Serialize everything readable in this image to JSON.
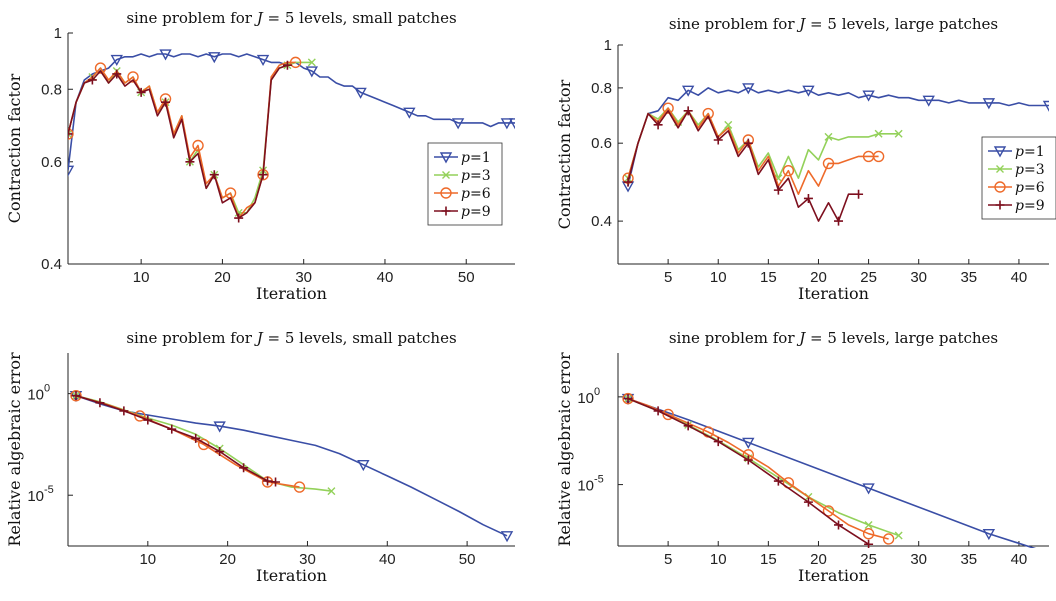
{
  "figure": {
    "colors": {
      "p1": "#3a4ea6",
      "p3": "#93d15a",
      "p6": "#ee6a2a",
      "p9": "#7d0f1e",
      "axis": "#222222"
    }
  },
  "chart_data": [
    {
      "type": "line",
      "title_prefix": "sine problem for ",
      "title_var": "J",
      "title_suffix": " = 5 levels, small patches",
      "xlabel": "Iteration",
      "ylabel": "Contraction factor",
      "xlim": [
        1,
        56
      ],
      "ylim": [
        0.4,
        1.0
      ],
      "yscale": "log",
      "xticks": [
        10,
        20,
        30,
        40,
        50
      ],
      "yticks": [
        {
          "v": 0.4,
          "label": "0.4"
        },
        {
          "v": 0.6,
          "label": "0.6"
        },
        {
          "v": 0.8,
          "label": "0.8"
        },
        {
          "v": 1.0,
          "label": "1"
        }
      ],
      "legend": "right",
      "series": [
        {
          "name": "p=1",
          "var": "p",
          "eq": "=1",
          "color": "#3a4ea6",
          "marker": "triangle-down",
          "every": 6,
          "x": [
            1,
            2,
            3,
            4,
            5,
            6,
            7,
            8,
            9,
            10,
            11,
            12,
            13,
            14,
            15,
            16,
            17,
            18,
            19,
            20,
            21,
            22,
            23,
            24,
            25,
            26,
            27,
            28,
            29,
            30,
            31,
            32,
            33,
            34,
            35,
            36,
            37,
            38,
            39,
            40,
            41,
            42,
            43,
            44,
            45,
            46,
            47,
            48,
            49,
            50,
            51,
            52,
            53,
            54,
            55,
            56
          ],
          "y": [
            0.58,
            0.76,
            0.83,
            0.85,
            0.86,
            0.87,
            0.9,
            0.91,
            0.91,
            0.92,
            0.91,
            0.92,
            0.92,
            0.91,
            0.92,
            0.92,
            0.91,
            0.92,
            0.91,
            0.92,
            0.92,
            0.91,
            0.92,
            0.91,
            0.9,
            0.89,
            0.89,
            0.88,
            0.89,
            0.87,
            0.86,
            0.84,
            0.84,
            0.82,
            0.81,
            0.81,
            0.79,
            0.78,
            0.77,
            0.76,
            0.75,
            0.74,
            0.73,
            0.72,
            0.72,
            0.71,
            0.71,
            0.71,
            0.7,
            0.7,
            0.7,
            0.7,
            0.69,
            0.7,
            0.7,
            0.7
          ]
        },
        {
          "name": "p=3",
          "var": "p",
          "eq": "=3",
          "color": "#93d15a",
          "marker": "x",
          "every": 3,
          "x": [
            1,
            2,
            3,
            4,
            5,
            6,
            7,
            8,
            9,
            10,
            11,
            12,
            13,
            14,
            15,
            16,
            17,
            18,
            19,
            20,
            21,
            22,
            23,
            24,
            25,
            26,
            27,
            28,
            29,
            30,
            31
          ],
          "y": [
            0.67,
            0.76,
            0.82,
            0.84,
            0.87,
            0.82,
            0.86,
            0.82,
            0.84,
            0.79,
            0.81,
            0.73,
            0.76,
            0.67,
            0.72,
            0.6,
            0.63,
            0.54,
            0.57,
            0.52,
            0.53,
            0.49,
            0.49,
            0.52,
            0.58,
            0.83,
            0.87,
            0.88,
            0.89,
            0.89,
            0.89
          ]
        },
        {
          "name": "p=6",
          "var": "p",
          "eq": "=6",
          "color": "#ee6a2a",
          "marker": "circle",
          "every": 4,
          "x": [
            1,
            2,
            3,
            4,
            5,
            6,
            7,
            8,
            9,
            10,
            11,
            12,
            13,
            14,
            15,
            16,
            17,
            18,
            19,
            20,
            21,
            22,
            23,
            24,
            25,
            26,
            27,
            28,
            29
          ],
          "y": [
            0.67,
            0.76,
            0.82,
            0.84,
            0.87,
            0.83,
            0.86,
            0.82,
            0.84,
            0.79,
            0.81,
            0.73,
            0.77,
            0.67,
            0.72,
            0.61,
            0.64,
            0.55,
            0.57,
            0.52,
            0.53,
            0.48,
            0.5,
            0.51,
            0.57,
            0.84,
            0.88,
            0.89,
            0.89
          ]
        },
        {
          "name": "p=9",
          "var": "p",
          "eq": "=9",
          "color": "#7d0f1e",
          "marker": "plus",
          "every": 3,
          "x": [
            1,
            2,
            3,
            4,
            5,
            6,
            7,
            8,
            9,
            10,
            11,
            12,
            13,
            14,
            15,
            16,
            17,
            18,
            19,
            20,
            21,
            22,
            23,
            24,
            25,
            26,
            27,
            28
          ],
          "y": [
            0.67,
            0.76,
            0.82,
            0.83,
            0.86,
            0.82,
            0.85,
            0.81,
            0.83,
            0.79,
            0.8,
            0.72,
            0.76,
            0.66,
            0.71,
            0.6,
            0.62,
            0.54,
            0.57,
            0.51,
            0.52,
            0.48,
            0.49,
            0.51,
            0.57,
            0.83,
            0.87,
            0.88
          ]
        }
      ]
    },
    {
      "type": "line",
      "title_prefix": "sine problem for ",
      "title_var": "J",
      "title_suffix": " = 5 levels, large patches",
      "xlabel": "Iteration",
      "ylabel": "Contraction factor",
      "xlim": [
        0,
        43
      ],
      "ylim": [
        0.32,
        1.0
      ],
      "yscale": "log",
      "xticks": [
        5,
        10,
        15,
        20,
        25,
        30,
        35,
        40
      ],
      "yticks": [
        {
          "v": 0.4,
          "label": "0.4"
        },
        {
          "v": 0.6,
          "label": "0.6"
        },
        {
          "v": 0.8,
          "label": "0.8"
        },
        {
          "v": 1.0,
          "label": "1"
        }
      ],
      "legend": "right",
      "series": [
        {
          "name": "p=1",
          "var": "p",
          "eq": "=1",
          "color": "#3a4ea6",
          "marker": "triangle-down",
          "every": 6,
          "x": [
            1,
            2,
            3,
            4,
            5,
            6,
            7,
            8,
            9,
            10,
            11,
            12,
            13,
            14,
            15,
            16,
            17,
            18,
            19,
            20,
            21,
            22,
            23,
            24,
            25,
            26,
            27,
            28,
            29,
            30,
            31,
            32,
            33,
            34,
            35,
            36,
            37,
            38,
            39,
            40,
            41,
            42,
            43
          ],
          "y": [
            0.48,
            0.6,
            0.7,
            0.71,
            0.76,
            0.75,
            0.79,
            0.77,
            0.8,
            0.78,
            0.79,
            0.78,
            0.8,
            0.78,
            0.79,
            0.78,
            0.79,
            0.78,
            0.79,
            0.77,
            0.78,
            0.77,
            0.78,
            0.76,
            0.77,
            0.76,
            0.77,
            0.76,
            0.76,
            0.75,
            0.75,
            0.75,
            0.74,
            0.75,
            0.74,
            0.74,
            0.74,
            0.74,
            0.73,
            0.74,
            0.73,
            0.73,
            0.73
          ]
        },
        {
          "name": "p=3",
          "var": "p",
          "eq": "=3",
          "color": "#93d15a",
          "marker": "x",
          "every": 5,
          "x": [
            1,
            2,
            3,
            4,
            5,
            6,
            7,
            8,
            9,
            10,
            11,
            12,
            13,
            14,
            15,
            16,
            17,
            18,
            19,
            20,
            21,
            22,
            23,
            24,
            25,
            26,
            27,
            28
          ],
          "y": [
            0.5,
            0.6,
            0.7,
            0.68,
            0.72,
            0.67,
            0.71,
            0.66,
            0.7,
            0.62,
            0.66,
            0.58,
            0.61,
            0.53,
            0.57,
            0.5,
            0.56,
            0.5,
            0.58,
            0.55,
            0.62,
            0.61,
            0.62,
            0.62,
            0.62,
            0.63,
            0.63,
            0.63
          ]
        },
        {
          "name": "p=6",
          "var": "p",
          "eq": "=6",
          "color": "#ee6a2a",
          "marker": "circle",
          "every": 4,
          "x": [
            1,
            2,
            3,
            4,
            5,
            6,
            7,
            8,
            9,
            10,
            11,
            12,
            13,
            14,
            15,
            16,
            17,
            18,
            19,
            20,
            21,
            22,
            23,
            24,
            25,
            26
          ],
          "y": [
            0.5,
            0.6,
            0.7,
            0.67,
            0.72,
            0.66,
            0.71,
            0.65,
            0.7,
            0.62,
            0.65,
            0.57,
            0.61,
            0.52,
            0.56,
            0.48,
            0.52,
            0.46,
            0.52,
            0.48,
            0.54,
            0.54,
            0.55,
            0.56,
            0.56,
            0.56
          ]
        },
        {
          "name": "p=9",
          "var": "p",
          "eq": "=9",
          "color": "#7d0f1e",
          "marker": "plus",
          "every": 3,
          "x": [
            1,
            2,
            3,
            4,
            5,
            6,
            7,
            8,
            9,
            10,
            11,
            12,
            13,
            14,
            15,
            16,
            17,
            18,
            19,
            20,
            21,
            22,
            23,
            24
          ],
          "y": [
            0.49,
            0.6,
            0.7,
            0.66,
            0.71,
            0.65,
            0.71,
            0.64,
            0.69,
            0.61,
            0.64,
            0.56,
            0.6,
            0.51,
            0.55,
            0.47,
            0.5,
            0.43,
            0.45,
            0.4,
            0.44,
            0.4,
            0.46,
            0.46
          ]
        }
      ]
    },
    {
      "type": "line",
      "title_prefix": "sine problem for ",
      "title_var": "J",
      "title_suffix": " = 5 levels, small patches",
      "xlabel": "Iteration",
      "ylabel": "Relative algebraic error",
      "xlim": [
        0,
        56
      ],
      "ylim": [
        -7.5,
        2.0
      ],
      "yscale": "log10",
      "xticks": [
        10,
        20,
        30,
        40,
        50
      ],
      "yticks": [
        {
          "v": 0,
          "label": "10",
          "exp": "0"
        },
        {
          "v": -5,
          "label": "10",
          "exp": "-5"
        }
      ],
      "series": [
        {
          "name": "p=1",
          "color": "#3a4ea6",
          "marker": "triangle-down",
          "every": 6,
          "x": [
            1,
            4,
            7,
            10,
            13,
            16,
            19,
            22,
            25,
            28,
            31,
            34,
            37,
            40,
            43,
            46,
            49,
            52,
            55
          ],
          "y": [
            -0.1,
            -0.5,
            -0.85,
            -1.05,
            -1.25,
            -1.45,
            -1.6,
            -1.8,
            -2.05,
            -2.3,
            -2.55,
            -2.95,
            -3.5,
            -4.05,
            -4.6,
            -5.2,
            -5.8,
            -6.45,
            -7.0
          ]
        },
        {
          "name": "p=3",
          "color": "#93d15a",
          "marker": "x",
          "every": 6,
          "x": [
            1,
            4,
            7,
            10,
            13,
            16,
            19,
            22,
            25,
            28,
            31,
            33
          ],
          "y": [
            -0.1,
            -0.4,
            -0.8,
            -1.2,
            -1.55,
            -2.0,
            -2.7,
            -3.5,
            -4.3,
            -4.6,
            -4.7,
            -4.8
          ]
        },
        {
          "name": "p=6",
          "color": "#ee6a2a",
          "marker": "circle",
          "every": 2,
          "x": [
            1,
            5,
            9,
            13,
            17,
            21,
            25,
            29
          ],
          "y": [
            -0.1,
            -0.55,
            -1.1,
            -1.75,
            -2.5,
            -3.5,
            -4.35,
            -4.6
          ]
        },
        {
          "name": "p=9",
          "color": "#7d0f1e",
          "marker": "plus",
          "every": 1,
          "x": [
            1,
            4,
            7,
            10,
            13,
            16,
            19,
            22,
            25,
            26
          ],
          "y": [
            -0.1,
            -0.45,
            -0.85,
            -1.3,
            -1.75,
            -2.2,
            -2.85,
            -3.65,
            -4.3,
            -4.35
          ]
        }
      ]
    },
    {
      "type": "line",
      "title_prefix": "sine problem for ",
      "title_var": "J",
      "title_suffix": " = 5 levels, large patches",
      "xlabel": "Iteration",
      "ylabel": "Relative algebraic error",
      "xlim": [
        0,
        43
      ],
      "ylim": [
        -8.5,
        2.5
      ],
      "yscale": "log10",
      "xticks": [
        5,
        10,
        15,
        20,
        25,
        30,
        35,
        40
      ],
      "yticks": [
        {
          "v": 0,
          "label": "10",
          "exp": "0"
        },
        {
          "v": -5,
          "label": "10",
          "exp": "-5"
        }
      ],
      "series": [
        {
          "name": "p=1",
          "color": "#3a4ea6",
          "marker": "triangle-down",
          "every": 2,
          "x": [
            1,
            7,
            13,
            19,
            25,
            31,
            37,
            43
          ],
          "y": [
            -0.1,
            -1.3,
            -2.6,
            -3.9,
            -5.2,
            -6.5,
            -7.8,
            -8.9
          ]
        },
        {
          "name": "p=3",
          "color": "#93d15a",
          "marker": "x",
          "every": 2,
          "x": [
            1,
            4,
            7,
            10,
            13,
            16,
            19,
            22,
            25,
            28
          ],
          "y": [
            -0.1,
            -0.8,
            -1.6,
            -2.5,
            -3.5,
            -4.6,
            -5.7,
            -6.6,
            -7.3,
            -7.9
          ]
        },
        {
          "name": "p=6",
          "color": "#ee6a2a",
          "marker": "circle",
          "every": 2,
          "x": [
            1,
            3,
            5,
            7,
            9,
            11,
            13,
            15,
            17,
            19,
            21,
            23,
            25,
            27
          ],
          "y": [
            -0.1,
            -0.5,
            -1.0,
            -1.5,
            -2.0,
            -2.6,
            -3.3,
            -4.0,
            -4.9,
            -5.7,
            -6.5,
            -7.3,
            -7.8,
            -8.1
          ]
        },
        {
          "name": "p=9",
          "color": "#7d0f1e",
          "marker": "plus",
          "every": 1,
          "x": [
            1,
            4,
            7,
            10,
            13,
            16,
            19,
            22,
            25
          ],
          "y": [
            -0.1,
            -0.8,
            -1.65,
            -2.55,
            -3.6,
            -4.8,
            -6.0,
            -7.3,
            -8.4
          ]
        }
      ]
    }
  ]
}
